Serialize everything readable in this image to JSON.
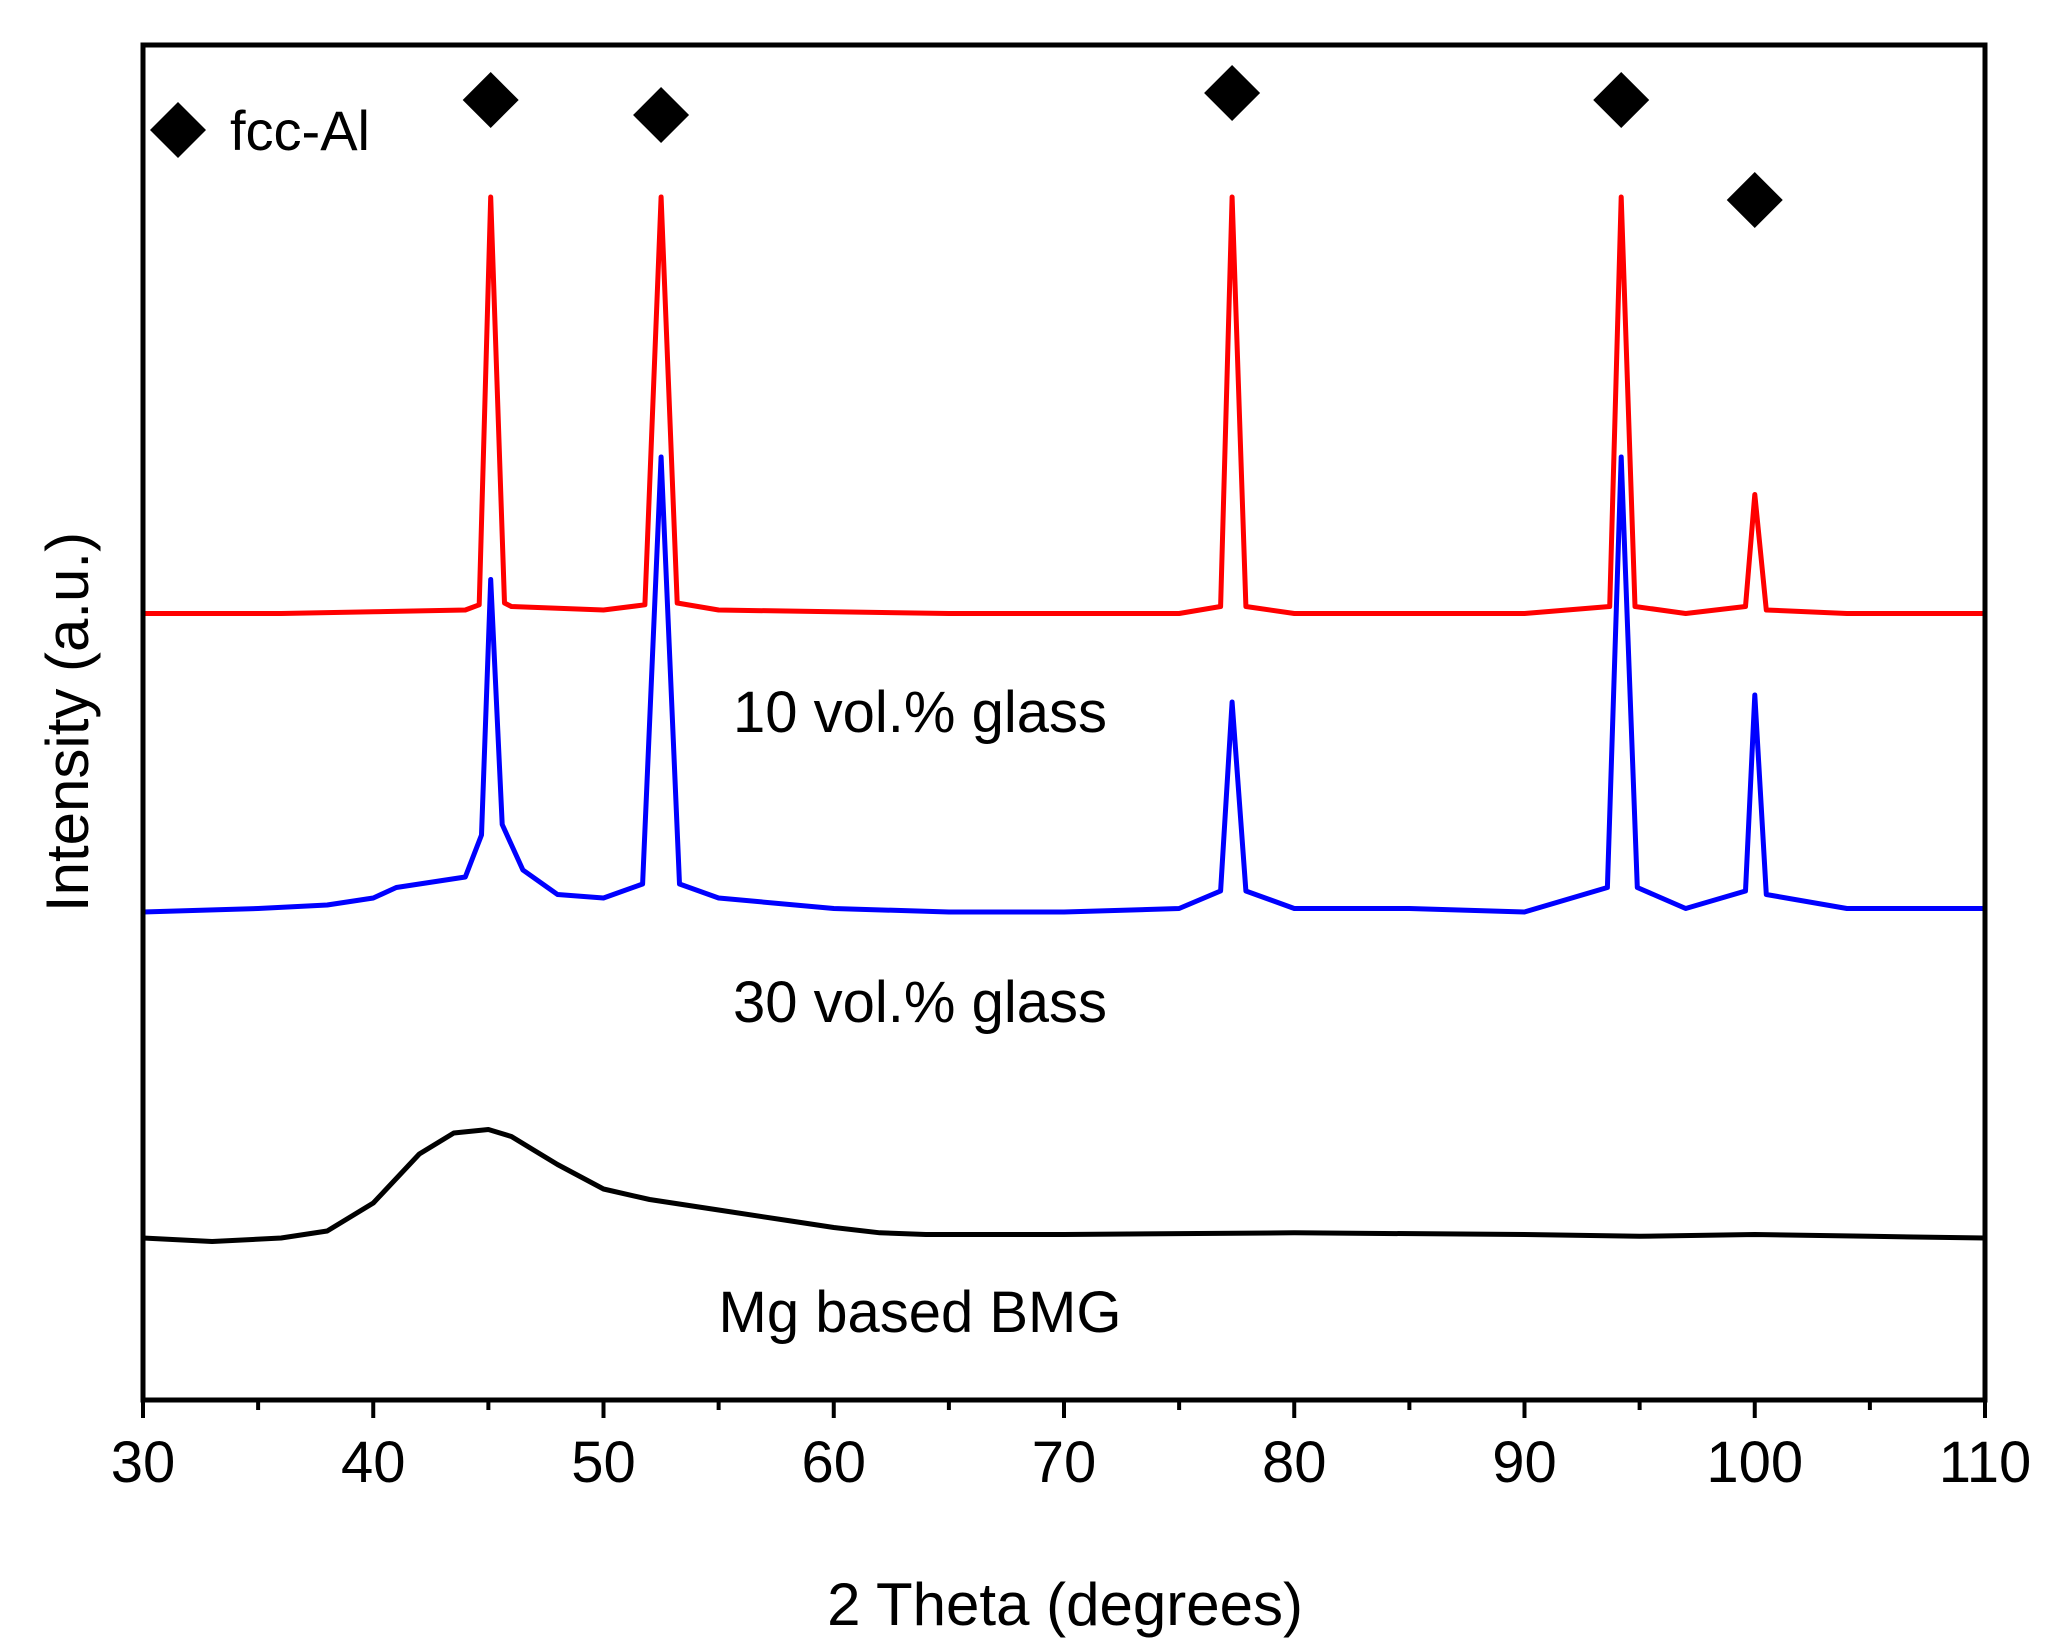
{
  "chart_data": {
    "type": "line",
    "title": "",
    "xlabel": "2 Theta (degrees)",
    "ylabel": "Intensity (a.u.)",
    "xlim": [
      30,
      110
    ],
    "xticks": [
      "30",
      "40",
      "50",
      "60",
      "70",
      "80",
      "90",
      "100",
      "110"
    ],
    "yticks_labeled": false,
    "grid": false,
    "legend": {
      "position": "top-left",
      "marker": "diamond",
      "label": "fcc-Al"
    },
    "peak_markers": {
      "phase": "fcc-Al",
      "x": [
        45.1,
        52.5,
        77.3,
        94.2,
        100.0
      ]
    },
    "series": [
      {
        "name": "10 vol.% glass",
        "color": "#ff0000",
        "x": [
          30,
          36,
          40,
          44,
          44.6,
          45.1,
          45.7,
          46,
          48,
          50,
          51.8,
          52.5,
          53.2,
          55,
          60,
          65,
          70,
          75,
          76.8,
          77.3,
          77.9,
          80,
          85,
          90,
          93.7,
          94.2,
          94.8,
          97,
          99.6,
          100.0,
          100.5,
          104,
          110
        ],
        "y": [
          0.11,
          0.11,
          0.115,
          0.12,
          0.135,
          1.3,
          0.14,
          0.13,
          0.125,
          0.12,
          0.135,
          1.3,
          0.14,
          0.12,
          0.115,
          0.11,
          0.11,
          0.11,
          0.13,
          1.3,
          0.13,
          0.11,
          0.11,
          0.11,
          0.13,
          1.3,
          0.13,
          0.11,
          0.13,
          0.45,
          0.12,
          0.11,
          0.11
        ]
      },
      {
        "name": "30 vol.% glass",
        "color": "#0000ff",
        "x": [
          30,
          35,
          38,
          40,
          41,
          42,
          43,
          44,
          44.7,
          45.1,
          45.6,
          46.5,
          48,
          50,
          51.7,
          52.5,
          53.3,
          55,
          60,
          65,
          70,
          75,
          76.8,
          77.3,
          77.9,
          80,
          85,
          90,
          93.6,
          94.2,
          94.9,
          97,
          99.6,
          100.0,
          100.5,
          104,
          110
        ],
        "y": [
          0.0,
          0.01,
          0.02,
          0.04,
          0.07,
          0.08,
          0.09,
          0.1,
          0.22,
          0.95,
          0.25,
          0.12,
          0.05,
          0.04,
          0.08,
          1.3,
          0.08,
          0.04,
          0.01,
          0.0,
          0.0,
          0.01,
          0.06,
          0.6,
          0.06,
          0.01,
          0.01,
          0.0,
          0.07,
          1.3,
          0.07,
          0.01,
          0.06,
          0.62,
          0.05,
          0.01,
          0.01
        ]
      },
      {
        "name": "Mg based BMG",
        "color": "#000000",
        "x": [
          30,
          33,
          36,
          38,
          40,
          42,
          43.5,
          45,
          46,
          47,
          48,
          50,
          52,
          55,
          58,
          60,
          62,
          64,
          66,
          70,
          80,
          90,
          95,
          100,
          105,
          110
        ],
        "y": [
          0.0,
          -0.01,
          0.0,
          0.02,
          0.1,
          0.24,
          0.3,
          0.31,
          0.29,
          0.25,
          0.21,
          0.14,
          0.11,
          0.08,
          0.05,
          0.03,
          0.015,
          0.01,
          0.01,
          0.01,
          0.015,
          0.01,
          0.005,
          0.01,
          0.005,
          0.0
        ]
      }
    ]
  }
}
